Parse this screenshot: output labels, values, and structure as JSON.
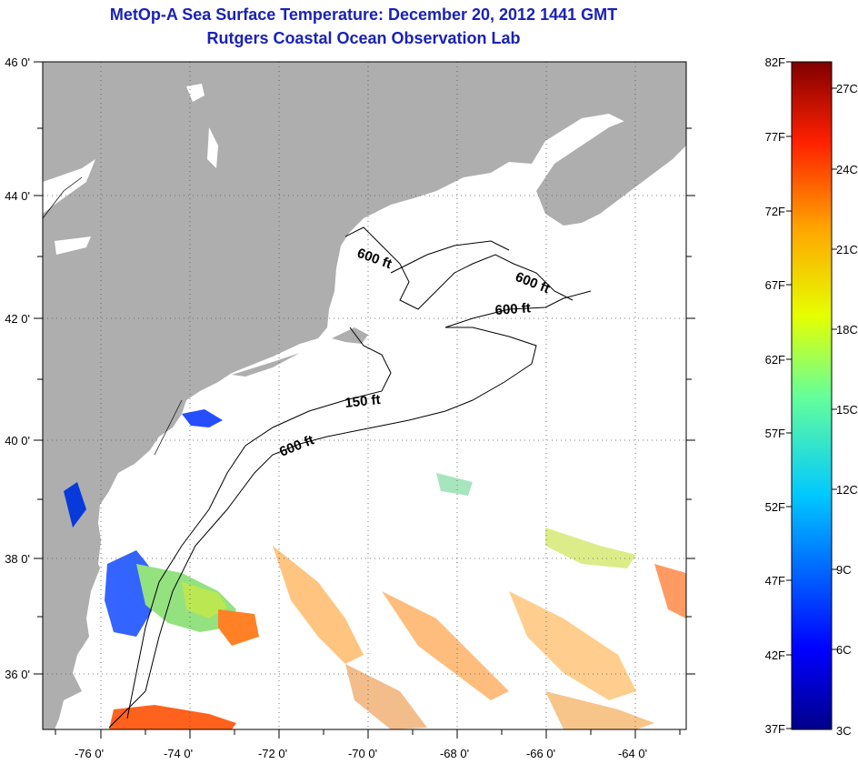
{
  "title": "MetOp-A Sea Surface Temperature:  December 20, 2012 1441 GMT",
  "subtitle": "Rutgers Coastal Ocean Observation Lab",
  "map": {
    "lon_labels": [
      "-76 0'",
      "-74 0'",
      "-72 0'",
      "-70 0'",
      "-68 0'",
      "-66 0'",
      "-64 0'"
    ],
    "lat_labels": [
      "46 0'",
      "44 0'",
      "42 0'",
      "40 0'",
      "38 0'",
      "36 0'"
    ],
    "contour_labels": [
      {
        "id": "c1",
        "text": "600 ft"
      },
      {
        "id": "c2",
        "text": "600 ft"
      },
      {
        "id": "c3",
        "text": "600 ft"
      },
      {
        "id": "c4",
        "text": "150 ft"
      },
      {
        "id": "c5",
        "text": "600 ft"
      }
    ],
    "colors": {
      "land": "#aeaeae",
      "ocean": "#ffffff",
      "title": "#1a22b5"
    }
  },
  "colorbar": {
    "fahrenheit": [
      "82F",
      "77F",
      "72F",
      "67F",
      "62F",
      "57F",
      "52F",
      "47F",
      "42F",
      "37F"
    ],
    "celsius": [
      "27C",
      "24C",
      "21C",
      "18C",
      "15C",
      "12C",
      "9C",
      "6C",
      "3C"
    ]
  }
}
